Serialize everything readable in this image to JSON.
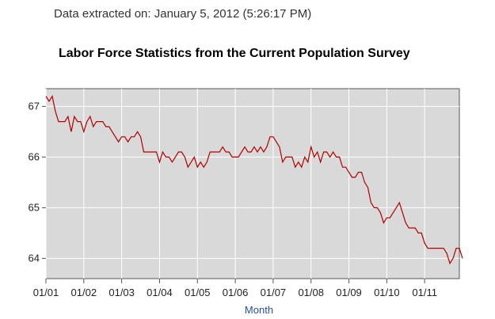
{
  "header": {
    "extracted_text": "Data extracted on: January 5, 2012 (5:26:17 PM)"
  },
  "chart_data": {
    "type": "line",
    "title": "Labor Force Statistics from the Current Population Survey",
    "xlabel": "Month",
    "ylabel": "",
    "ylim": [
      63.6,
      67.35
    ],
    "yticks": [
      64,
      65,
      66,
      67
    ],
    "x_tick_labels": [
      "01/01",
      "01/02",
      "01/03",
      "01/04",
      "01/05",
      "01/06",
      "01/07",
      "01/08",
      "01/09",
      "01/10",
      "01/11"
    ],
    "grid": true,
    "line_color": "#b00000",
    "background_color": "#d9d9d9",
    "series": [
      {
        "values": [
          67.2,
          67.1,
          67.2,
          66.9,
          66.7,
          66.7,
          66.7,
          66.8,
          66.5,
          66.8,
          66.7,
          66.7,
          66.5,
          66.7,
          66.8,
          66.6,
          66.7,
          66.7,
          66.7,
          66.6,
          66.6,
          66.5,
          66.4,
          66.3,
          66.4,
          66.4,
          66.3,
          66.4,
          66.4,
          66.5,
          66.4,
          66.1,
          66.1,
          66.1,
          66.1,
          66.1,
          65.9,
          66.1,
          66.0,
          66.0,
          65.9,
          66.0,
          66.1,
          66.1,
          66.0,
          65.8,
          65.9,
          66.0,
          65.8,
          65.9,
          65.8,
          65.9,
          66.1,
          66.1,
          66.1,
          66.1,
          66.2,
          66.1,
          66.1,
          66.0,
          66.0,
          66.0,
          66.1,
          66.2,
          66.1,
          66.1,
          66.2,
          66.1,
          66.2,
          66.1,
          66.2,
          66.4,
          66.4,
          66.3,
          66.2,
          65.9,
          66.0,
          66.0,
          66.0,
          65.8,
          65.9,
          65.8,
          66.0,
          65.9,
          66.2,
          66.0,
          66.1,
          65.9,
          66.1,
          66.1,
          66.0,
          66.1,
          66.0,
          66.0,
          65.8,
          65.8,
          65.7,
          65.6,
          65.6,
          65.7,
          65.7,
          65.5,
          65.4,
          65.1,
          65.0,
          65.0,
          64.9,
          64.7,
          64.8,
          64.8,
          64.9,
          65.0,
          65.1,
          64.9,
          64.7,
          64.6,
          64.6,
          64.6,
          64.5,
          64.5,
          64.3,
          64.2,
          64.2,
          64.2,
          64.2,
          64.2,
          64.2,
          64.1,
          63.9,
          64.0,
          64.2,
          64.2,
          64.0
        ]
      }
    ]
  }
}
